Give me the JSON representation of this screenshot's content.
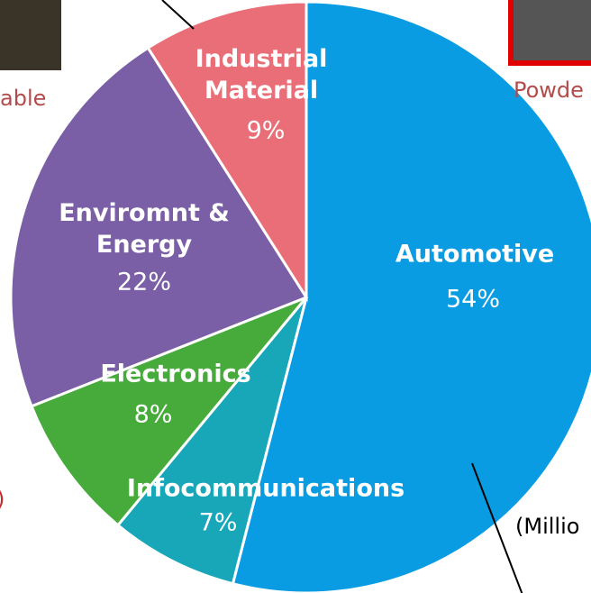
{
  "chart_data": {
    "type": "pie",
    "categories": [
      "Automotive",
      "Infocommunications",
      "Electronics",
      "Enviromnt &\nEnergy",
      "Industrial\nMaterial"
    ],
    "values": [
      54,
      7,
      8,
      22,
      9
    ],
    "value_labels": [
      "54%",
      "7%",
      "8%",
      "22%",
      "9%"
    ],
    "colors": [
      "#0a9ce2",
      "#17a7b8",
      "#47ab3b",
      "#7a5fa6",
      "#ea6e78"
    ]
  },
  "side_texts": [
    "able",
    "Powde",
    "(Millio",
    ")"
  ]
}
